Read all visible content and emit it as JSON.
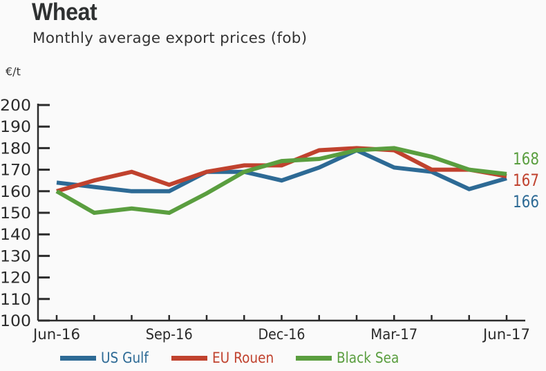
{
  "chart_data": {
    "type": "line",
    "title": "Wheat",
    "subtitle": "Monthly average export prices (fob)",
    "ylabel": "€/t",
    "xlabel": "",
    "ylim": [
      100,
      200
    ],
    "yticks": [
      100,
      110,
      120,
      130,
      140,
      150,
      160,
      170,
      180,
      190,
      200
    ],
    "x": [
      "Jun-16",
      "Jul-16",
      "Aug-16",
      "Sep-16",
      "Oct-16",
      "Nov-16",
      "Dec-16",
      "Jan-17",
      "Feb-17",
      "Mar-17",
      "Apr-17",
      "May-17",
      "Jun-17"
    ],
    "xtick_labels": [
      {
        "index": 0,
        "label": "Jun-16"
      },
      {
        "index": 3,
        "label": "Sep-16"
      },
      {
        "index": 6,
        "label": "Dec-16"
      },
      {
        "index": 9,
        "label": "Mar-17"
      },
      {
        "index": 12,
        "label": "Jun-17"
      }
    ],
    "grid": false,
    "legend_position": "bottom",
    "series": [
      {
        "name": "US Gulf",
        "color": "#2d6a95",
        "end_label": "166",
        "values": [
          164,
          162,
          160,
          160,
          169,
          169,
          165,
          171,
          179,
          171,
          169,
          161,
          166
        ]
      },
      {
        "name": "EU Rouen",
        "color": "#c0422e",
        "end_label": "167",
        "values": [
          160,
          165,
          169,
          163,
          169,
          172,
          172,
          179,
          180,
          179,
          170,
          170,
          167
        ]
      },
      {
        "name": "Black Sea",
        "color": "#5a9e3f",
        "end_label": "168",
        "values": [
          160,
          150,
          152,
          150,
          159,
          169,
          174,
          175,
          179,
          180,
          176,
          170,
          168
        ]
      }
    ]
  }
}
